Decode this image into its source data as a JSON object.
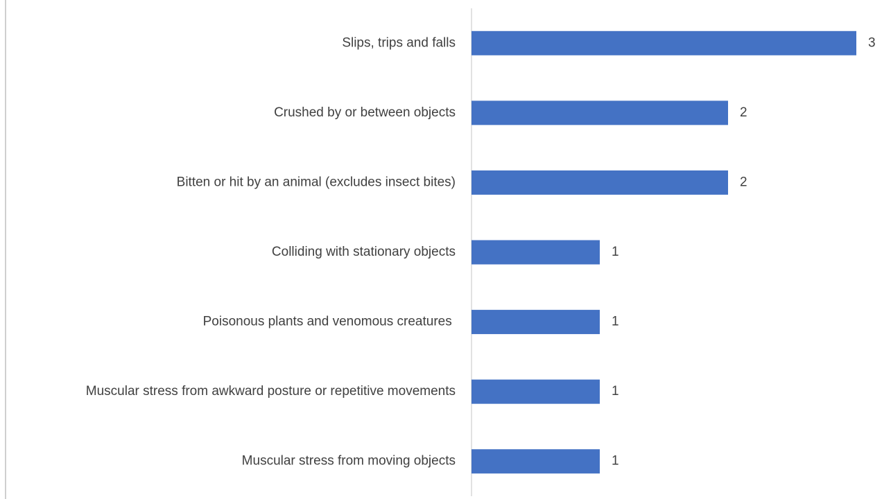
{
  "chart_data": {
    "type": "bar",
    "orientation": "horizontal",
    "categories": [
      "Slips, trips and falls",
      "Crushed by or between objects",
      "Bitten or hit by an animal (excludes insect bites)",
      "Colliding with stationary objects",
      "Poisonous plants and venomous creatures ",
      "Muscular stress from awkward posture or repetitive movements",
      "Muscular stress from moving objects"
    ],
    "values": [
      3,
      2,
      2,
      1,
      1,
      1,
      1
    ],
    "color": "#4472c4",
    "data_labels": true
  }
}
